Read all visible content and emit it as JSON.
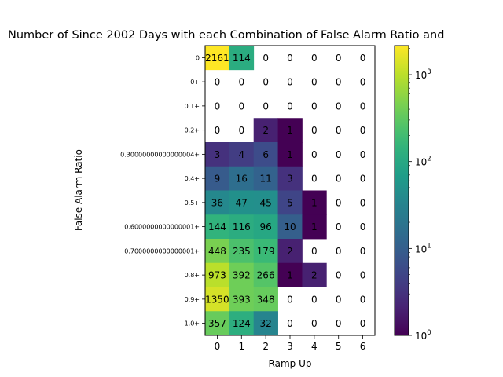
{
  "chart_data": {
    "type": "heatmap",
    "title": "Number of Since 2002 Days with each Combination of False Alarm Ratio and",
    "xlabel": "Ramp Up",
    "ylabel": "False Alarm Ratio",
    "x_categories": [
      "0",
      "1",
      "2",
      "3",
      "4",
      "5",
      "6"
    ],
    "y_categories": [
      "0",
      "0+",
      "0.1+",
      "0.2+",
      "0.30000000000000004+",
      "0.4+",
      "0.5+",
      "0.6000000000000001+",
      "0.7000000000000001+",
      "0.8+",
      "0.9+",
      "1.0+"
    ],
    "values": [
      [
        2161,
        114,
        0,
        0,
        0,
        0,
        0
      ],
      [
        0,
        0,
        0,
        0,
        0,
        0,
        0
      ],
      [
        0,
        0,
        0,
        0,
        0,
        0,
        0
      ],
      [
        0,
        0,
        2,
        1,
        0,
        0,
        0
      ],
      [
        3,
        4,
        6,
        1,
        0,
        0,
        0
      ],
      [
        9,
        16,
        11,
        3,
        0,
        0,
        0
      ],
      [
        36,
        47,
        45,
        5,
        1,
        0,
        0
      ],
      [
        144,
        116,
        96,
        10,
        1,
        0,
        0
      ],
      [
        448,
        235,
        179,
        2,
        0,
        0,
        0
      ],
      [
        973,
        392,
        266,
        1,
        2,
        0,
        0
      ],
      [
        1350,
        393,
        348,
        0,
        0,
        0,
        0
      ],
      [
        357,
        124,
        32,
        0,
        0,
        0,
        0
      ]
    ],
    "colormap": "viridis",
    "color_scale": "log",
    "color_range": [
      1,
      2161
    ],
    "zero_cells": "blank",
    "colorbar": {
      "ticks": [
        {
          "value": 1,
          "label": "10",
          "exp": "0"
        },
        {
          "value": 10,
          "label": "10",
          "exp": "1"
        },
        {
          "value": 100,
          "label": "10",
          "exp": "2"
        },
        {
          "value": 1000,
          "label": "10",
          "exp": "3"
        }
      ]
    }
  }
}
